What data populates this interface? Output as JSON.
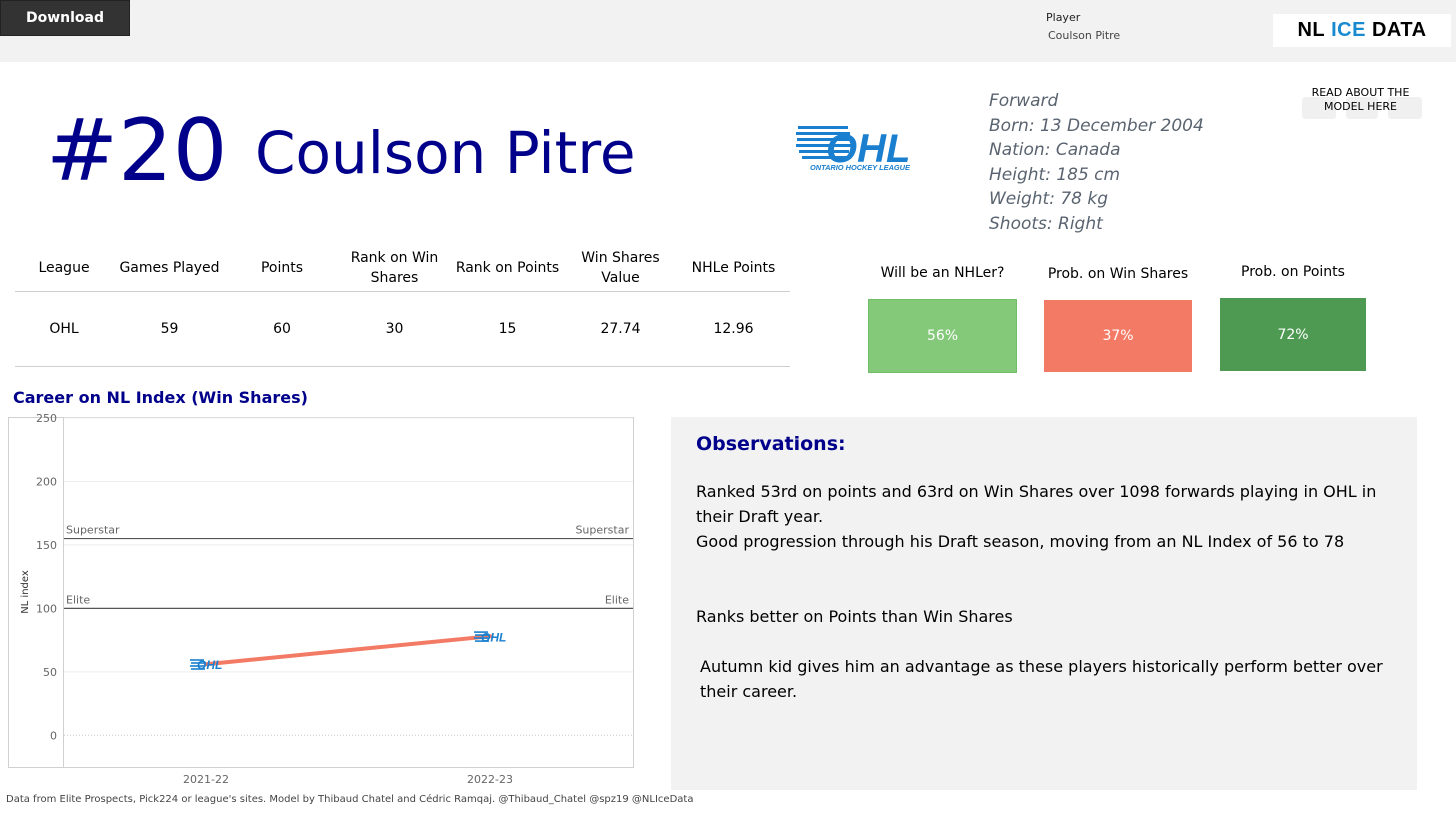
{
  "toolbar": {
    "download_label": "Download"
  },
  "filter": {
    "label": "Player",
    "value": "Coulson Pitre"
  },
  "brand": {
    "part1": "NL",
    "part2": "ICE",
    "part3": "DATA"
  },
  "header": {
    "jersey": "#20",
    "name": "Coulson Pitre"
  },
  "league_logo": {
    "text": "ONTARIO HOCKEY LEAGUE",
    "letters": "OHL",
    "color": "#1a7fcf"
  },
  "bio": {
    "position": "Forward",
    "born": "Born: 13 December 2004",
    "nation": "Nation: Canada",
    "height": "Height: 185 cm",
    "weight": "Weight: 78 kg",
    "shoots": "Shoots: Right"
  },
  "model_link": {
    "text": "READ ABOUT THE MODEL HERE"
  },
  "stats": {
    "headers": [
      "League",
      "Games Played",
      "Points",
      "Rank on Win Shares",
      "Rank on Points",
      "Win Shares Value",
      "NHLe Points"
    ],
    "row": [
      "OHL",
      "59",
      "60",
      "30",
      "15",
      "27.74",
      "12.96"
    ]
  },
  "probabilities": [
    {
      "label": "Will be an NHLer?",
      "value": "56%",
      "color": "#84c97a"
    },
    {
      "label": "Prob. on Win Shares",
      "value": "37%",
      "color": "#f37a65"
    },
    {
      "label": "Prob. on Points",
      "value": "72%",
      "color": "#4f9a52"
    }
  ],
  "chart_title": "Career on NL Index (Win Shares)",
  "chart_data": {
    "type": "line",
    "categories": [
      "2021-22",
      "2022-23"
    ],
    "series": [
      {
        "values": [
          56,
          78
        ],
        "color": "#f37a65"
      }
    ],
    "ylabel": "NL index",
    "ylim": [
      -25,
      250
    ],
    "yticks": [
      0,
      50,
      100,
      150,
      200,
      250
    ],
    "reference_lines": [
      {
        "label": "Superstar",
        "value": 155
      },
      {
        "label": "Elite",
        "value": 100
      }
    ],
    "point_marker": "OHL"
  },
  "observations": {
    "title": "Observations:",
    "lines": [
      "Ranked 53rd on points and 63rd on Win Shares over 1098 forwards playing in OHL in their Draft year.",
      "Good progression through his Draft season, moving from an NL Index of 56 to 78",
      "Ranks better on Points than Win Shares",
      "Autumn kid gives him an advantage as these players historically perform better over their career."
    ]
  },
  "footer": "Data from Elite Prospects, Pick224 or league's sites. Model by Thibaud Chatel and Cédric Ramqaj. @Thibaud_Chatel @spz19 @NLIceData"
}
